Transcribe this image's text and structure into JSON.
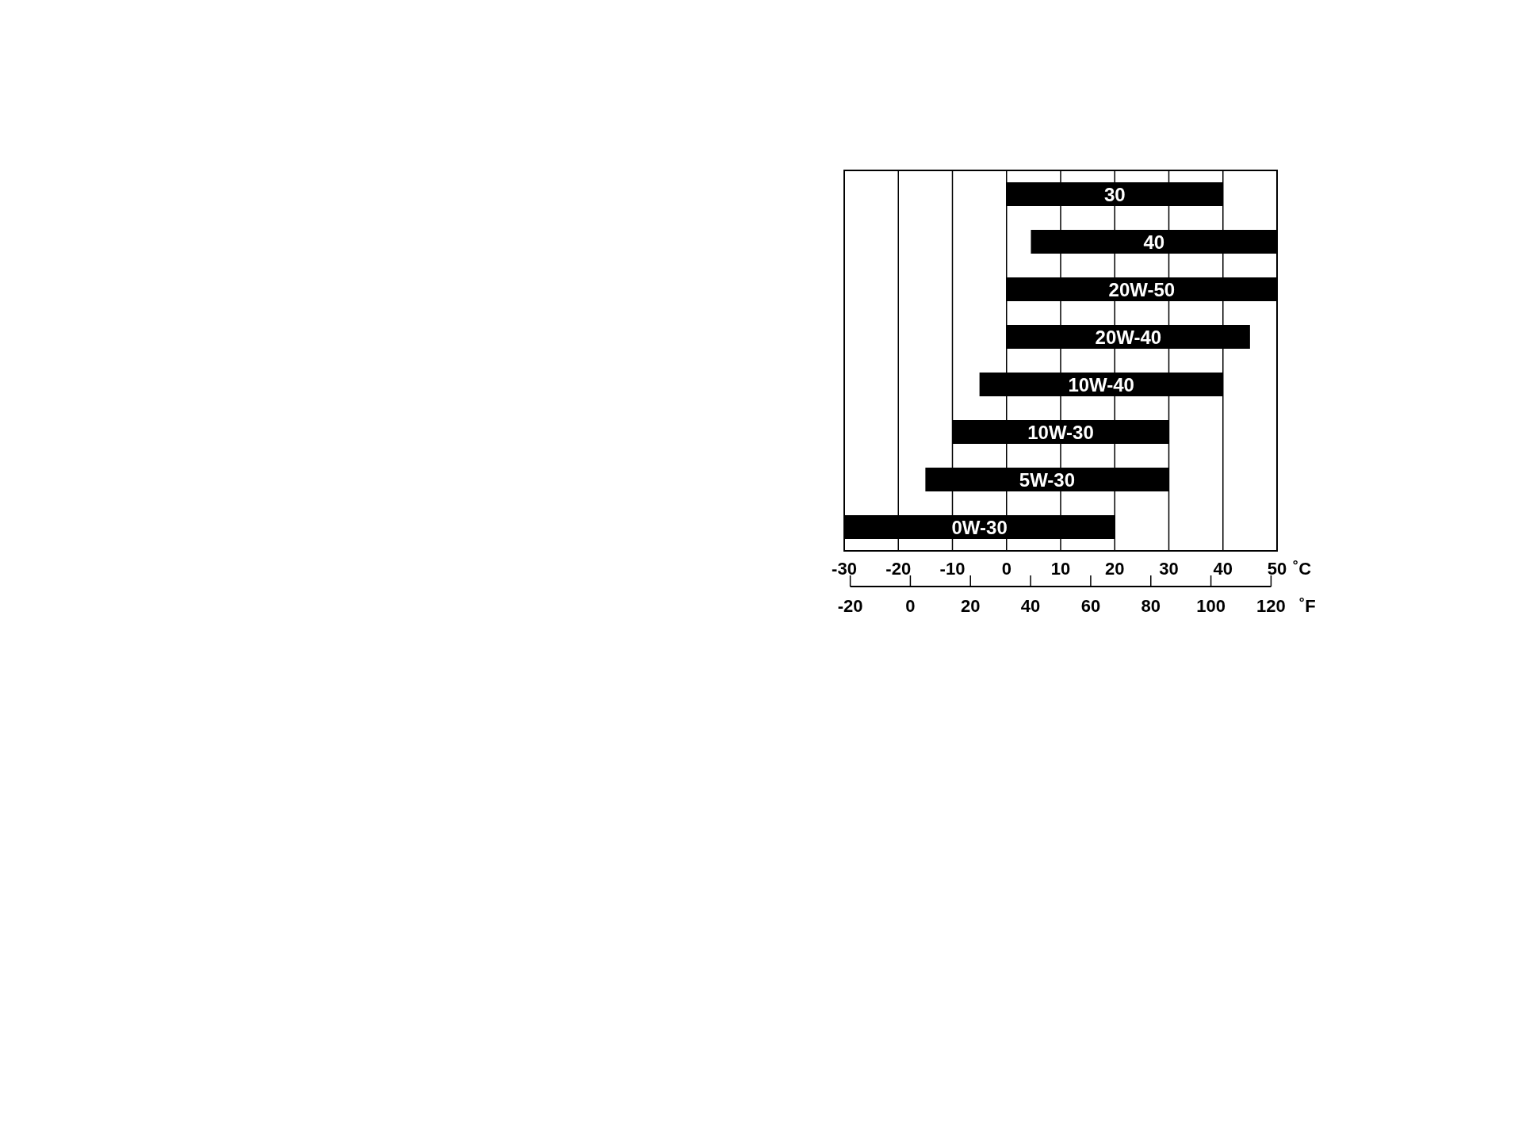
{
  "chart_data": {
    "type": "bar",
    "orientation": "horizontal",
    "categories": [
      "30",
      "40",
      "20W-50",
      "20W-40",
      "10W-40",
      "10W-30",
      "5W-30",
      "0W-30"
    ],
    "base": [
      0,
      4.5,
      0,
      0,
      -5,
      -10,
      -15,
      -30
    ],
    "values": [
      40,
      45.5,
      50,
      45,
      45,
      40,
      45,
      50
    ],
    "color": "#000000",
    "xlim": [
      -30,
      50
    ],
    "xticks": [
      -30,
      -20,
      -10,
      0,
      10,
      20,
      30,
      40,
      50
    ],
    "xlabel": "˚C",
    "x2lim": [
      -22,
      122
    ],
    "x2ticks": [
      -20,
      0,
      20,
      40,
      60,
      80,
      100,
      120
    ],
    "x2label": "˚F",
    "grid": "x"
  }
}
